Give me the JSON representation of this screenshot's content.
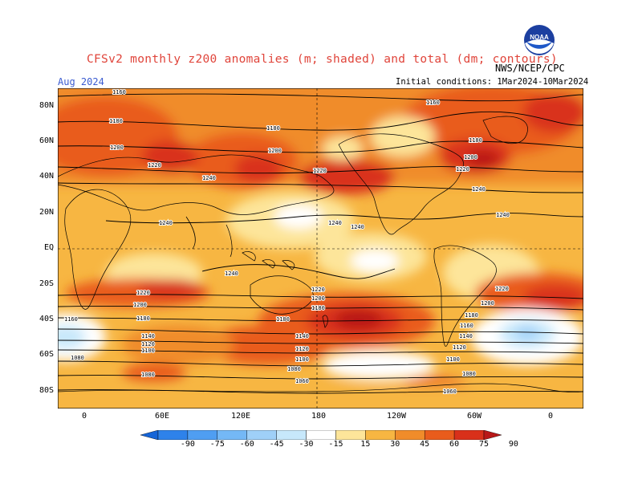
{
  "header": {
    "title": "CFSv2 monthly z200 anomalies (m; shaded) and total (dm; contours)",
    "valid_month": "Aug 2024",
    "initial_conditions": "Initial conditions: 1Mar2024-10Mar2024",
    "organization": "NWS/NCEP/CPC",
    "logo_text": "NOAA"
  },
  "axes": {
    "lat_labels": [
      "80N",
      "60N",
      "40N",
      "20N",
      "EQ",
      "20S",
      "40S",
      "60S",
      "80S"
    ],
    "lon_labels": [
      "0",
      "60E",
      "120E",
      "180",
      "120W",
      "60W",
      "0"
    ]
  },
  "contour_labels": [
    {
      "text": "1160"
    },
    {
      "text": "1180"
    },
    {
      "text": "1200"
    },
    {
      "text": "1220"
    },
    {
      "text": "1240"
    },
    {
      "text": "1180"
    },
    {
      "text": "1200"
    },
    {
      "text": "1220"
    },
    {
      "text": "1160"
    },
    {
      "text": "1180"
    },
    {
      "text": "1200"
    },
    {
      "text": "1220"
    },
    {
      "text": "1240"
    },
    {
      "text": "1240"
    },
    {
      "text": "1240"
    },
    {
      "text": "1240"
    },
    {
      "text": "1240"
    },
    {
      "text": "1240"
    },
    {
      "text": "1220"
    },
    {
      "text": "1200"
    },
    {
      "text": "1180"
    },
    {
      "text": "1160"
    },
    {
      "text": "1140"
    },
    {
      "text": "1120"
    },
    {
      "text": "1100"
    },
    {
      "text": "1080"
    },
    {
      "text": "1080"
    },
    {
      "text": "1220"
    },
    {
      "text": "1200"
    },
    {
      "text": "1180"
    },
    {
      "text": "1180"
    },
    {
      "text": "1140"
    },
    {
      "text": "1120"
    },
    {
      "text": "1100"
    },
    {
      "text": "1080"
    },
    {
      "text": "1060"
    },
    {
      "text": "1220"
    },
    {
      "text": "1200"
    },
    {
      "text": "1180"
    },
    {
      "text": "1160"
    },
    {
      "text": "1140"
    },
    {
      "text": "1120"
    },
    {
      "text": "1100"
    },
    {
      "text": "1080"
    },
    {
      "text": "1060"
    }
  ],
  "colorbar": {
    "labels": [
      "-90",
      "-75",
      "-60",
      "-45",
      "-30",
      "-15",
      "15",
      "30",
      "45",
      "60",
      "75",
      "90"
    ],
    "colors": [
      "#1565d8",
      "#2e82ea",
      "#4f9ef2",
      "#74b8f6",
      "#9fd0f8",
      "#c7e8fb",
      "#ffffff",
      "#fde59a",
      "#f7b642",
      "#f08c2a",
      "#e95c1c",
      "#d9301a",
      "#b81818"
    ]
  }
}
